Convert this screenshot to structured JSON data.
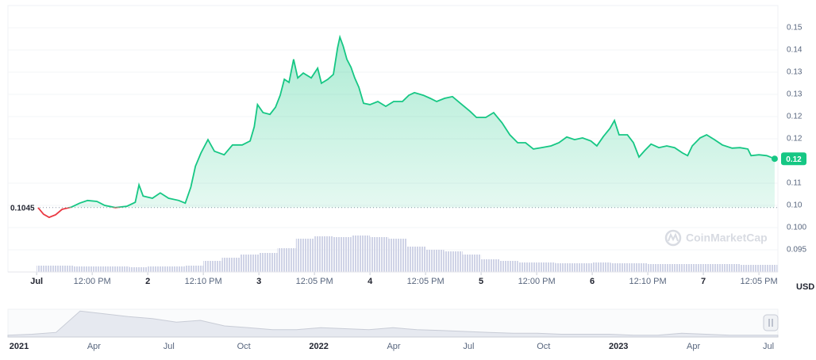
{
  "chart_data": {
    "type": "line",
    "color": "#16c784",
    "below_color": "#ea3943",
    "x": [
      0.3,
      1.5,
      2.7,
      4.1,
      5.5,
      7.5,
      9.3,
      11.0,
      13.0,
      14.7,
      17.0,
      19.5,
      21.3,
      22.1,
      23.0,
      25.0,
      26.7,
      28.5,
      30.7,
      32.1,
      33.3,
      34.3,
      35.5,
      37.0,
      38.4,
      40.5,
      42.3,
      44.4,
      46.1,
      47.0,
      47.7,
      48.9,
      50.4,
      51.6,
      52.6,
      53.5,
      54.5,
      55.5,
      56.4,
      57.6,
      59.3,
      60.7,
      61.5,
      62.9,
      64.1,
      65.0,
      65.5,
      66.2,
      67.0,
      67.9,
      68.7,
      69.6,
      70.6,
      72.0,
      73.7,
      75.4,
      77.1,
      79.0,
      80.4,
      81.6,
      83.5,
      85.0,
      86.4,
      88.1,
      89.8,
      91.5,
      93.6,
      95.0,
      97.0,
      98.7,
      100.5,
      102.2,
      103.9,
      105.6,
      107.3,
      109.0,
      111.1,
      112.8,
      114.5,
      116.2,
      117.9,
      119.7,
      121.0,
      122.4,
      123.8,
      124.8,
      125.8,
      127.6,
      128.9,
      130.1,
      131.3,
      132.7,
      134.4,
      136.1,
      137.8,
      139.5,
      140.6,
      141.6,
      143.3,
      144.7,
      146.4,
      148.1,
      150.2,
      151.9,
      153.6,
      154.3,
      156.0,
      157.7,
      159.4
    ],
    "values": [
      0.1045,
      0.103,
      0.1023,
      0.1029,
      0.1041,
      0.1046,
      0.1055,
      0.1061,
      0.1059,
      0.105,
      0.1045,
      0.1048,
      0.1057,
      0.1096,
      0.1071,
      0.1066,
      0.1078,
      0.1066,
      0.1061,
      0.1055,
      0.1091,
      0.1138,
      0.1168,
      0.1198,
      0.1172,
      0.1164,
      0.1186,
      0.1186,
      0.1195,
      0.1227,
      0.1277,
      0.1259,
      0.1255,
      0.1271,
      0.1298,
      0.1334,
      0.1327,
      0.1379,
      0.1337,
      0.1348,
      0.1337,
      0.1359,
      0.1325,
      0.1334,
      0.1345,
      0.1405,
      0.1429,
      0.1409,
      0.1379,
      0.1361,
      0.1337,
      0.1316,
      0.128,
      0.1277,
      0.1284,
      0.1273,
      0.1284,
      0.1284,
      0.1298,
      0.1304,
      0.1298,
      0.1291,
      0.1284,
      0.1291,
      0.1295,
      0.128,
      0.1262,
      0.1248,
      0.1248,
      0.1259,
      0.1236,
      0.1209,
      0.1191,
      0.1191,
      0.1177,
      0.118,
      0.1184,
      0.1191,
      0.1204,
      0.1198,
      0.1202,
      0.1195,
      0.1184,
      0.1205,
      0.1223,
      0.1241,
      0.1209,
      0.1209,
      0.1191,
      0.1159,
      0.1173,
      0.1188,
      0.118,
      0.1184,
      0.118,
      0.1168,
      0.1162,
      0.1184,
      0.1202,
      0.1209,
      0.1198,
      0.1186,
      0.1179,
      0.118,
      0.1177,
      0.1162,
      0.1164,
      0.1162,
      0.1155
    ],
    "xlim": [
      -6.2,
      160.1
    ],
    "xticks": [
      {
        "value": 0,
        "label": "Jul"
      },
      {
        "value": 12,
        "label": "12:00 PM"
      },
      {
        "value": 24,
        "label": "2"
      },
      {
        "value": 36,
        "label": "12:10 PM"
      },
      {
        "value": 48,
        "label": "3"
      },
      {
        "value": 60,
        "label": "12:05 PM"
      },
      {
        "value": 72,
        "label": "4"
      },
      {
        "value": 84,
        "label": "12:05 PM"
      },
      {
        "value": 96,
        "label": "5"
      },
      {
        "value": 108,
        "label": "12:00 PM"
      },
      {
        "value": 120,
        "label": "6"
      },
      {
        "value": 132,
        "label": "12:10 PM"
      },
      {
        "value": 144,
        "label": "7"
      },
      {
        "value": 156,
        "label": "12:05 PM"
      }
    ],
    "ylim": [
      0.09,
      0.15
    ],
    "yticks": [
      {
        "value": 0.095,
        "label": "0.095"
      },
      {
        "value": 0.1,
        "label": "0.100"
      },
      {
        "value": 0.105,
        "label": "0.10"
      },
      0.11,
      {
        "value": 0.12,
        "label": "0.12"
      },
      {
        "value": 0.125,
        "label": "0.12"
      },
      0.13,
      {
        "value": 0.135,
        "label": "0.13"
      },
      0.14,
      {
        "value": 0.145,
        "label": "0.15"
      }
    ],
    "grid": true,
    "reference": {
      "value": 0.1045,
      "label": "0.1045"
    },
    "current_price_label": "0.12",
    "axis_unit": "USD",
    "watermark": "CoinMarketCap",
    "volume": {
      "x": [
        0,
        4,
        8,
        12,
        16,
        20,
        24,
        28,
        32,
        36,
        40,
        44,
        48,
        52,
        56,
        60,
        64,
        68,
        72,
        76,
        80,
        84,
        88,
        92,
        96,
        100,
        104,
        108,
        112,
        116,
        120,
        124,
        128,
        132,
        136,
        140,
        144,
        148,
        152,
        156
      ],
      "values": [
        8,
        8,
        7,
        7,
        7,
        6,
        7,
        7,
        8,
        14,
        18,
        22,
        24,
        30,
        42,
        45,
        44,
        46,
        44,
        42,
        32,
        28,
        26,
        22,
        16,
        14,
        12,
        12,
        11,
        11,
        12,
        11,
        11,
        10,
        10,
        10,
        10,
        10,
        9,
        9
      ],
      "ylim": [
        0,
        100
      ]
    },
    "navigator": {
      "labels": [
        "2021",
        "Apr",
        "Jul",
        "Oct",
        "2022",
        "Apr",
        "Jul",
        "Oct",
        "2023",
        "Apr",
        "Jul"
      ],
      "values": [
        2,
        3,
        5,
        28,
        25,
        22,
        20,
        16,
        18,
        12,
        10,
        8,
        8,
        10,
        9,
        8,
        10,
        8,
        7,
        6,
        5,
        4,
        4,
        3,
        3,
        3,
        2,
        2,
        4,
        3,
        2,
        2,
        2
      ],
      "ylim": [
        0,
        30
      ]
    }
  }
}
